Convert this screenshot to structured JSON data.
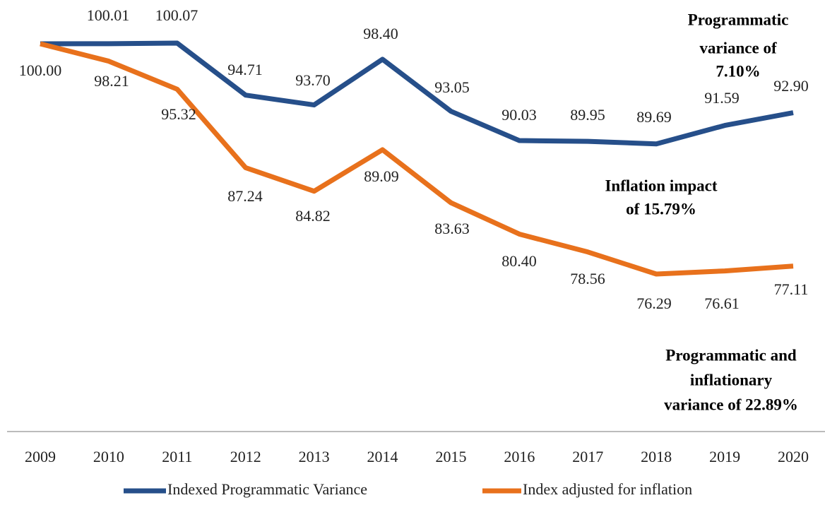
{
  "chart_data": {
    "type": "line",
    "categories": [
      "2009",
      "2010",
      "2011",
      "2012",
      "2013",
      "2014",
      "2015",
      "2016",
      "2017",
      "2018",
      "2019",
      "2020"
    ],
    "series": [
      {
        "name": "Indexed Programmatic Variance",
        "color": "#264f8a",
        "values": [
          100.0,
          100.01,
          100.07,
          94.71,
          93.7,
          98.4,
          93.05,
          90.03,
          89.95,
          89.69,
          91.59,
          92.9
        ],
        "value_labels": [
          "100.00",
          "100.01",
          "100.07",
          "94.71",
          "93.70",
          "98.40",
          "93.05",
          "90.03",
          "89.95",
          "89.69",
          "91.59",
          "92.90"
        ]
      },
      {
        "name": "Index adjusted for inflation",
        "color": "#e8711c",
        "values": [
          100.0,
          98.21,
          95.32,
          87.24,
          84.82,
          89.09,
          83.63,
          80.4,
          78.56,
          76.29,
          76.61,
          77.11
        ],
        "value_labels": [
          "100.00",
          "98.21",
          "95.32",
          "87.24",
          "84.82",
          "89.09",
          "83.63",
          "80.40",
          "78.56",
          "76.29",
          "76.61",
          "77.11"
        ]
      }
    ],
    "annotations": [
      {
        "lines": [
          "Programmatic",
          "variance of",
          "7.10%"
        ]
      },
      {
        "lines": [
          "Inflation impact",
          "of 15.79%"
        ]
      },
      {
        "lines": [
          "Programmatic and",
          "inflationary",
          "variance of 22.89%"
        ]
      }
    ]
  }
}
